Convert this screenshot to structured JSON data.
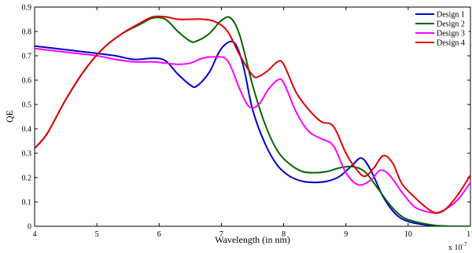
{
  "chart_data": {
    "type": "line",
    "title": "",
    "xlabel": "Wavelength (in nm)",
    "ylabel": "QE",
    "x_multiplier_label": "x 10",
    "x_multiplier_exponent": "-7",
    "xlim": [
      4,
      11
    ],
    "ylim": [
      0,
      0.9
    ],
    "x_ticks": [
      "4",
      "5",
      "6",
      "7",
      "8",
      "9",
      "10",
      "11"
    ],
    "y_ticks": [
      "0",
      "0.1",
      "0.2",
      "0.3",
      "0.4",
      "0.5",
      "0.6",
      "0.7",
      "0.8",
      "0.9"
    ],
    "grid": false,
    "legend_position": "top-right",
    "series": [
      {
        "name": "Design 1",
        "color": "#0000cc",
        "x": [
          4.0,
          4.5,
          5.0,
          5.3,
          5.6,
          5.9,
          6.1,
          6.3,
          6.5,
          6.6,
          6.8,
          7.0,
          7.2,
          7.35,
          7.5,
          7.7,
          7.9,
          8.1,
          8.3,
          8.5,
          8.7,
          8.9,
          9.1,
          9.25,
          9.4,
          9.6,
          9.8,
          10.0,
          10.3,
          10.6,
          11.0
        ],
        "y": [
          0.74,
          0.725,
          0.71,
          0.7,
          0.685,
          0.69,
          0.68,
          0.625,
          0.58,
          0.575,
          0.63,
          0.73,
          0.755,
          0.66,
          0.48,
          0.34,
          0.25,
          0.205,
          0.185,
          0.18,
          0.185,
          0.205,
          0.25,
          0.28,
          0.23,
          0.12,
          0.05,
          0.02,
          0.005,
          0.0,
          0.0
        ]
      },
      {
        "name": "Design 2",
        "color": "#006600",
        "x": [
          4.0,
          4.2,
          4.5,
          4.8,
          5.1,
          5.4,
          5.7,
          5.9,
          6.1,
          6.3,
          6.5,
          6.6,
          6.8,
          7.0,
          7.15,
          7.3,
          7.5,
          7.7,
          7.9,
          8.1,
          8.3,
          8.5,
          8.7,
          8.9,
          9.1,
          9.3,
          9.5,
          9.7,
          9.9,
          10.1,
          10.4,
          10.7,
          11.0
        ],
        "y": [
          0.32,
          0.38,
          0.52,
          0.64,
          0.73,
          0.79,
          0.83,
          0.855,
          0.85,
          0.8,
          0.76,
          0.76,
          0.79,
          0.845,
          0.855,
          0.78,
          0.58,
          0.42,
          0.31,
          0.255,
          0.225,
          0.22,
          0.225,
          0.24,
          0.245,
          0.225,
          0.16,
          0.09,
          0.04,
          0.02,
          0.005,
          0.0,
          0.0
        ]
      },
      {
        "name": "Design 3",
        "color": "#ff00ff",
        "x": [
          4.0,
          4.5,
          5.0,
          5.3,
          5.6,
          5.9,
          6.1,
          6.3,
          6.5,
          6.7,
          6.9,
          7.1,
          7.3,
          7.45,
          7.6,
          7.75,
          7.9,
          8.0,
          8.2,
          8.4,
          8.6,
          8.8,
          9.0,
          9.2,
          9.4,
          9.55,
          9.7,
          9.9,
          10.1,
          10.3,
          10.45,
          10.6,
          10.8,
          11.0
        ],
        "y": [
          0.73,
          0.715,
          0.7,
          0.685,
          0.675,
          0.675,
          0.67,
          0.665,
          0.67,
          0.69,
          0.695,
          0.68,
          0.56,
          0.49,
          0.5,
          0.56,
          0.6,
          0.59,
          0.47,
          0.39,
          0.36,
          0.33,
          0.22,
          0.17,
          0.19,
          0.23,
          0.21,
          0.14,
          0.08,
          0.06,
          0.055,
          0.07,
          0.11,
          0.18
        ]
      },
      {
        "name": "Design 4",
        "color": "#dd0000",
        "x": [
          4.0,
          4.2,
          4.5,
          4.8,
          5.1,
          5.4,
          5.7,
          5.9,
          6.1,
          6.3,
          6.5,
          6.7,
          6.9,
          7.1,
          7.3,
          7.5,
          7.6,
          7.75,
          7.9,
          8.0,
          8.2,
          8.4,
          8.6,
          8.8,
          9.0,
          9.15,
          9.3,
          9.45,
          9.6,
          9.75,
          9.9,
          10.1,
          10.3,
          10.45,
          10.6,
          10.8,
          11.0
        ],
        "y": [
          0.32,
          0.38,
          0.52,
          0.64,
          0.73,
          0.79,
          0.835,
          0.86,
          0.86,
          0.85,
          0.85,
          0.85,
          0.84,
          0.8,
          0.7,
          0.62,
          0.615,
          0.64,
          0.675,
          0.665,
          0.55,
          0.48,
          0.43,
          0.41,
          0.3,
          0.24,
          0.205,
          0.24,
          0.29,
          0.26,
          0.175,
          0.12,
          0.075,
          0.055,
          0.07,
          0.13,
          0.21
        ]
      }
    ]
  }
}
